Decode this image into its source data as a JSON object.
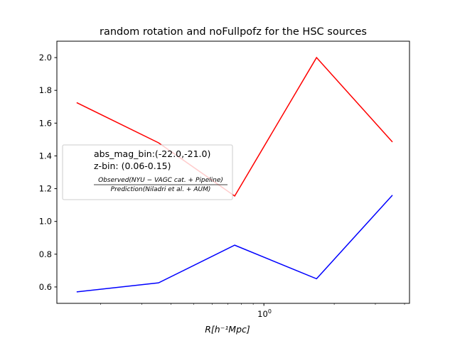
{
  "chart_data": {
    "type": "line",
    "title": "random rotation and noFullpofz for the HSC sources",
    "xlabel": "R[h⁻¹Mpc]",
    "ylabel": "",
    "xscale": "log",
    "xlim": [
      0.13,
      4.2
    ],
    "ylim": [
      0.5,
      2.1
    ],
    "x": [
      0.158,
      0.354,
      0.75,
      1.68,
      3.55
    ],
    "series": [
      {
        "name": "",
        "color": "#ff0000",
        "values": [
          1.725,
          1.48,
          1.155,
          2.0,
          1.485
        ]
      },
      {
        "name": "",
        "color": "#0000ff",
        "values": [
          0.57,
          0.625,
          0.855,
          0.65,
          1.16
        ]
      }
    ],
    "y_ticks": [
      0.6,
      0.8,
      1.0,
      1.2,
      1.4,
      1.6,
      1.8,
      2.0
    ],
    "y_tick_labels": [
      "0.6",
      "0.8",
      "1.0",
      "1.2",
      "1.4",
      "1.6",
      "1.8",
      "2.0"
    ],
    "x_major_ticks": [
      1.0
    ],
    "x_minor_ticks": [
      0.2,
      0.3,
      0.4,
      0.5,
      0.6,
      0.7,
      0.8,
      0.9,
      2,
      3,
      4
    ],
    "legend": {
      "placement": "center-left",
      "line1": "abs_mag_bin:(-22.0,-21.0)",
      "line2": "z-bin: (0.06-0.15)",
      "frac_numerator": "Observed(NYU − VAGC cat. + Pipeline)",
      "frac_denominator": "Prediction(Niladri et al. + AUM)"
    }
  }
}
